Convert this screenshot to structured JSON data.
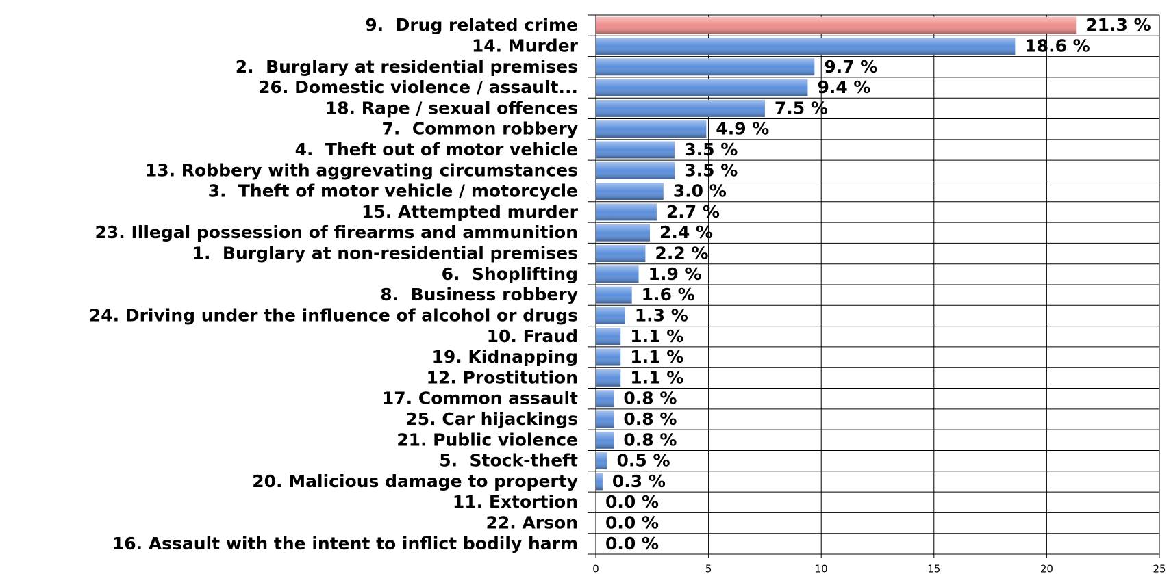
{
  "chart_data": {
    "type": "barh",
    "categories": [
      "9.  Drug related crime",
      "14. Murder",
      "2.  Burglary at residential premises",
      "26. Domestic violence / assault...",
      "18. Rape / sexual offences",
      "7.  Common robbery",
      "4.  Theft out of motor vehicle",
      "13. Robbery with aggrevating circumstances",
      "3.  Theft of motor vehicle / motorcycle",
      "15. Attempted murder",
      "23. Illegal possession of firearms and ammunition",
      "1.  Burglary at non-residential premises",
      "6.  Shoplifting",
      "8.  Business robbery",
      "24. Driving under the influence of alcohol or drugs",
      "10. Fraud",
      "19. Kidnapping",
      "12. Prostitution",
      "17. Common assault",
      "25. Car hijackings",
      "21. Public violence",
      "5.  Stock-theft",
      "20. Malicious damage to property",
      "11. Extortion",
      "22. Arson",
      "16. Assault with the intent to inflict bodily harm"
    ],
    "values": [
      21.3,
      18.6,
      9.7,
      9.4,
      7.5,
      4.9,
      3.5,
      3.5,
      3.0,
      2.7,
      2.4,
      2.2,
      1.9,
      1.6,
      1.3,
      1.1,
      1.1,
      1.1,
      0.8,
      0.8,
      0.8,
      0.5,
      0.3,
      0.0,
      0.0,
      0.0
    ],
    "value_labels": [
      "21.3 %",
      "18.6 %",
      "9.7 %",
      "9.4 %",
      "7.5 %",
      "4.9 %",
      "3.5 %",
      "3.5 %",
      "3.0 %",
      "2.7 %",
      "2.4 %",
      "2.2 %",
      "1.9 %",
      "1.6 %",
      "1.3 %",
      "1.1 %",
      "1.1 %",
      "1.1 %",
      "0.8 %",
      "0.8 %",
      "0.8 %",
      "0.5 %",
      "0.3 %",
      "0.0 %",
      "0.0 %",
      "0.0 %"
    ],
    "colors": [
      "#f08c8c",
      "#5b8fdc",
      "#5b8fdc",
      "#5b8fdc",
      "#5b8fdc",
      "#5b8fdc",
      "#5b8fdc",
      "#5b8fdc",
      "#5b8fdc",
      "#5b8fdc",
      "#5b8fdc",
      "#5b8fdc",
      "#5b8fdc",
      "#5b8fdc",
      "#5b8fdc",
      "#5b8fdc",
      "#5b8fdc",
      "#5b8fdc",
      "#5b8fdc",
      "#5b8fdc",
      "#5b8fdc",
      "#5b8fdc",
      "#5b8fdc",
      "#5b8fdc",
      "#5b8fdc",
      "#5b8fdc"
    ],
    "xlim": [
      0,
      25
    ],
    "xticks": [
      0,
      5,
      10,
      15,
      20,
      25
    ],
    "grid": true
  }
}
